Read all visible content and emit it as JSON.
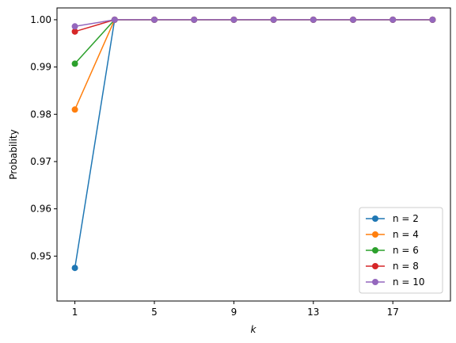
{
  "chart_data": {
    "type": "line",
    "xlabel": "k",
    "ylabel": "Probability",
    "xlim": [
      0.1,
      19.9
    ],
    "ylim": [
      0.9405,
      1.0025
    ],
    "xticks": [
      1,
      5,
      9,
      13,
      17
    ],
    "xtick_labels": [
      "1",
      "5",
      "9",
      "13",
      "17"
    ],
    "yticks": [
      0.95,
      0.96,
      0.97,
      0.98,
      0.99,
      1.0
    ],
    "ytick_labels": [
      "0.95",
      "0.96",
      "0.97",
      "0.98",
      "0.99",
      "1.00"
    ],
    "grid": false,
    "legend_position": "lower-right",
    "x": [
      1,
      3,
      5,
      7,
      9,
      11,
      13,
      15,
      17,
      19
    ],
    "series": [
      {
        "name": "n = 2",
        "color": "#1f77b4",
        "values": [
          0.9475,
          1.0,
          1.0,
          1.0,
          1.0,
          1.0,
          1.0,
          1.0,
          1.0,
          1.0
        ]
      },
      {
        "name": "n = 4",
        "color": "#ff7f0e",
        "values": [
          0.981,
          1.0,
          1.0,
          1.0,
          1.0,
          1.0,
          1.0,
          1.0,
          1.0,
          1.0
        ]
      },
      {
        "name": "n = 6",
        "color": "#2ca02c",
        "values": [
          0.9907,
          1.0,
          1.0,
          1.0,
          1.0,
          1.0,
          1.0,
          1.0,
          1.0,
          1.0
        ]
      },
      {
        "name": "n = 8",
        "color": "#d62728",
        "values": [
          0.9975,
          1.0,
          1.0,
          1.0,
          1.0,
          1.0,
          1.0,
          1.0,
          1.0,
          1.0
        ]
      },
      {
        "name": "n = 10",
        "color": "#9467bd",
        "values": [
          0.9986,
          1.0,
          1.0,
          1.0,
          1.0,
          1.0,
          1.0,
          1.0,
          1.0,
          1.0
        ]
      }
    ]
  }
}
